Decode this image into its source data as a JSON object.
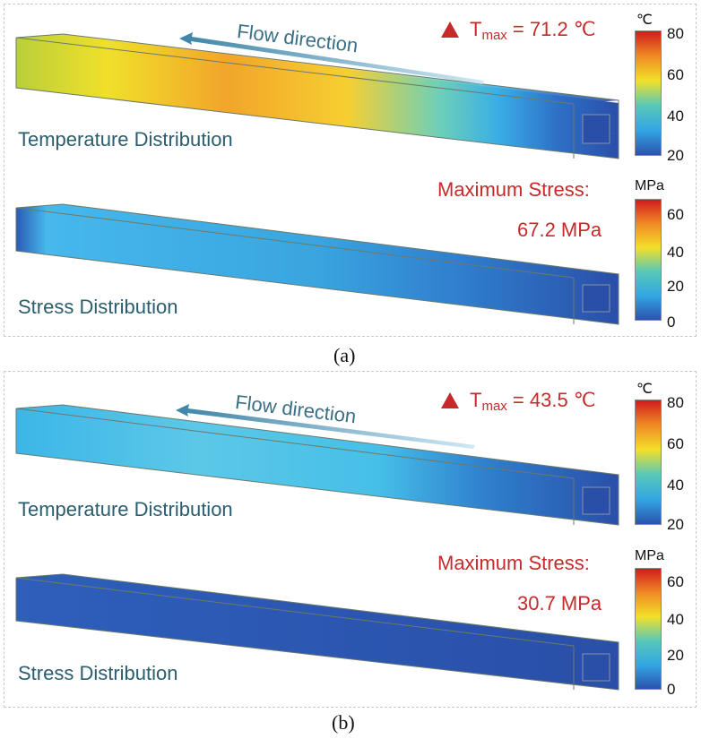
{
  "panel_a": {
    "caption": "(a)",
    "flow_label": "Flow direction",
    "temperature_label": "Temperature Distribution",
    "stress_label": "Stress Distribution",
    "tmax_prefix": "T",
    "tmax_sub": "max",
    "tmax_value": "= 71.2 ℃",
    "max_stress_label": "Maximum Stress:",
    "max_stress_value": "67.2 MPa",
    "temp_unit": "℃",
    "temp_ticks": [
      "80",
      "60",
      "40",
      "20"
    ],
    "stress_unit": "MPa",
    "stress_ticks": [
      "60",
      "40",
      "20",
      "0"
    ]
  },
  "panel_b": {
    "caption": "(b)",
    "flow_label": "Flow direction",
    "temperature_label": "Temperature Distribution",
    "stress_label": "Stress Distribution",
    "tmax_prefix": "T",
    "tmax_sub": "max",
    "tmax_value": "= 43.5 ℃",
    "max_stress_label": "Maximum Stress:",
    "max_stress_value": "30.7 MPa",
    "temp_unit": "℃",
    "temp_ticks": [
      "80",
      "60",
      "40",
      "20"
    ],
    "stress_unit": "MPa",
    "stress_ticks": [
      "60",
      "40",
      "20",
      "0"
    ]
  },
  "colors": {
    "label_teal": "#2b5d6e",
    "highlight_red": "#c62a2a",
    "flow_arrow": "#4a8aa6"
  }
}
